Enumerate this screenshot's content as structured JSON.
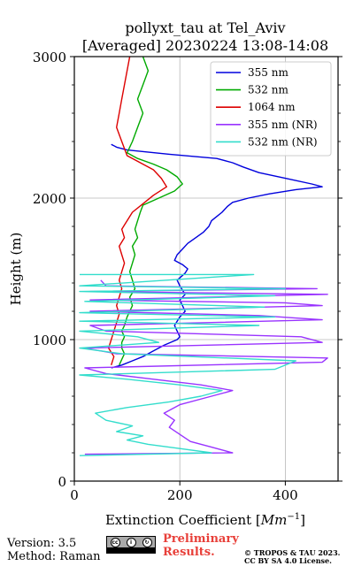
{
  "chart_data": {
    "type": "line",
    "title": "pollyxt_tau at Tel_Aviv",
    "subtitle": "[Averaged] 20230224 13:08-14:08",
    "xlabel": "Extinction Coefficient [Mm⁻¹]",
    "xlabel_main": "Extinction Coefficient [",
    "xlabel_unit": "Mm",
    "xlabel_exp": "−1",
    "xlabel_close": "]",
    "ylabel": "Height (m)",
    "xlim": [
      0,
      500
    ],
    "ylim": [
      0,
      3000
    ],
    "xticks": [
      0,
      200,
      400
    ],
    "xtick_labels": [
      "0",
      "200",
      "400"
    ],
    "yticks": [
      0,
      1000,
      2000,
      3000
    ],
    "ytick_labels": [
      "0",
      "1000",
      "2000",
      "3000"
    ],
    "grid": true,
    "legend_position": "top-right",
    "series": [
      {
        "name": "355 nm",
        "color": "#0000dd",
        "points": [
          [
            70,
            800
          ],
          [
            90,
            820
          ],
          [
            110,
            850
          ],
          [
            130,
            880
          ],
          [
            150,
            920
          ],
          [
            170,
            960
          ],
          [
            195,
            1000
          ],
          [
            200,
            1020
          ],
          [
            195,
            1060
          ],
          [
            190,
            1100
          ],
          [
            200,
            1160
          ],
          [
            210,
            1200
          ],
          [
            205,
            1240
          ],
          [
            200,
            1280
          ],
          [
            210,
            1320
          ],
          [
            205,
            1350
          ],
          [
            200,
            1380
          ],
          [
            195,
            1420
          ],
          [
            210,
            1470
          ],
          [
            215,
            1500
          ],
          [
            205,
            1530
          ],
          [
            190,
            1560
          ],
          [
            195,
            1600
          ],
          [
            205,
            1640
          ],
          [
            215,
            1680
          ],
          [
            230,
            1720
          ],
          [
            245,
            1760
          ],
          [
            255,
            1800
          ],
          [
            260,
            1840
          ],
          [
            270,
            1870
          ],
          [
            280,
            1900
          ],
          [
            290,
            1940
          ],
          [
            300,
            1970
          ],
          [
            330,
            2000
          ],
          [
            370,
            2030
          ],
          [
            420,
            2060
          ],
          [
            470,
            2080
          ],
          [
            450,
            2100
          ],
          [
            400,
            2140
          ],
          [
            350,
            2180
          ],
          [
            320,
            2220
          ],
          [
            300,
            2250
          ],
          [
            270,
            2280
          ],
          [
            180,
            2310
          ],
          [
            100,
            2340
          ],
          [
            80,
            2360
          ],
          [
            70,
            2380
          ]
        ]
      },
      {
        "name": "532 nm",
        "color": "#00aa00",
        "points": [
          [
            85,
            820
          ],
          [
            90,
            860
          ],
          [
            95,
            900
          ],
          [
            90,
            940
          ],
          [
            90,
            980
          ],
          [
            95,
            1020
          ],
          [
            90,
            1060
          ],
          [
            95,
            1100
          ],
          [
            100,
            1160
          ],
          [
            105,
            1200
          ],
          [
            110,
            1240
          ],
          [
            105,
            1300
          ],
          [
            115,
            1360
          ],
          [
            110,
            1420
          ],
          [
            105,
            1480
          ],
          [
            110,
            1540
          ],
          [
            115,
            1600
          ],
          [
            110,
            1660
          ],
          [
            120,
            1720
          ],
          [
            115,
            1780
          ],
          [
            120,
            1840
          ],
          [
            125,
            1900
          ],
          [
            130,
            1950
          ],
          [
            160,
            2000
          ],
          [
            190,
            2050
          ],
          [
            205,
            2100
          ],
          [
            195,
            2150
          ],
          [
            175,
            2200
          ],
          [
            150,
            2240
          ],
          [
            120,
            2280
          ],
          [
            100,
            2320
          ],
          [
            110,
            2400
          ],
          [
            120,
            2500
          ],
          [
            130,
            2600
          ],
          [
            120,
            2700
          ],
          [
            130,
            2800
          ],
          [
            140,
            2900
          ],
          [
            130,
            3000
          ]
        ]
      },
      {
        "name": "1064 nm",
        "color": "#dd0000",
        "points": [
          [
            70,
            820
          ],
          [
            75,
            880
          ],
          [
            65,
            940
          ],
          [
            70,
            1000
          ],
          [
            75,
            1060
          ],
          [
            80,
            1120
          ],
          [
            85,
            1180
          ],
          [
            80,
            1240
          ],
          [
            85,
            1300
          ],
          [
            90,
            1360
          ],
          [
            85,
            1420
          ],
          [
            90,
            1480
          ],
          [
            95,
            1540
          ],
          [
            90,
            1600
          ],
          [
            85,
            1660
          ],
          [
            95,
            1720
          ],
          [
            90,
            1780
          ],
          [
            100,
            1840
          ],
          [
            110,
            1900
          ],
          [
            130,
            1960
          ],
          [
            150,
            2020
          ],
          [
            175,
            2080
          ],
          [
            165,
            2140
          ],
          [
            150,
            2200
          ],
          [
            120,
            2260
          ],
          [
            100,
            2300
          ],
          [
            90,
            2400
          ],
          [
            80,
            2500
          ],
          [
            85,
            2600
          ],
          [
            90,
            2700
          ],
          [
            95,
            2800
          ],
          [
            100,
            2900
          ],
          [
            105,
            3000
          ]
        ]
      },
      {
        "name": "355 nm (NR)",
        "color": "#9933ff",
        "points": [
          [
            20,
            190
          ],
          [
            300,
            200
          ],
          [
            260,
            240
          ],
          [
            220,
            280
          ],
          [
            200,
            330
          ],
          [
            180,
            380
          ],
          [
            190,
            430
          ],
          [
            170,
            480
          ],
          [
            200,
            540
          ],
          [
            260,
            600
          ],
          [
            300,
            640
          ],
          [
            240,
            680
          ],
          [
            150,
            720
          ],
          [
            60,
            760
          ],
          [
            20,
            800
          ],
          [
            470,
            840
          ],
          [
            480,
            870
          ],
          [
            80,
            900
          ],
          [
            20,
            940
          ],
          [
            470,
            980
          ],
          [
            430,
            1020
          ],
          [
            60,
            1060
          ],
          [
            30,
            1100
          ],
          [
            470,
            1140
          ],
          [
            350,
            1170
          ],
          [
            30,
            1200
          ],
          [
            470,
            1240
          ],
          [
            400,
            1260
          ],
          [
            30,
            1280
          ],
          [
            480,
            1320
          ],
          [
            30,
            1340
          ],
          [
            460,
            1360
          ],
          [
            60,
            1380
          ],
          [
            50,
            1420
          ]
        ]
      },
      {
        "name": "532 nm (NR)",
        "color": "#33ddcc",
        "points": [
          [
            10,
            180
          ],
          [
            260,
            200
          ],
          [
            200,
            230
          ],
          [
            140,
            260
          ],
          [
            100,
            290
          ],
          [
            130,
            320
          ],
          [
            80,
            350
          ],
          [
            110,
            390
          ],
          [
            60,
            430
          ],
          [
            40,
            480
          ],
          [
            100,
            520
          ],
          [
            180,
            560
          ],
          [
            240,
            600
          ],
          [
            280,
            640
          ],
          [
            200,
            680
          ],
          [
            100,
            720
          ],
          [
            10,
            750
          ],
          [
            380,
            790
          ],
          [
            420,
            850
          ],
          [
            90,
            900
          ],
          [
            10,
            940
          ],
          [
            160,
            980
          ],
          [
            120,
            1020
          ],
          [
            10,
            1060
          ],
          [
            350,
            1100
          ],
          [
            10,
            1130
          ],
          [
            380,
            1160
          ],
          [
            10,
            1190
          ],
          [
            360,
            1230
          ],
          [
            20,
            1270
          ],
          [
            380,
            1310
          ],
          [
            10,
            1340
          ],
          [
            400,
            1360
          ],
          [
            10,
            1380
          ],
          [
            340,
            1460
          ],
          [
            10,
            1460
          ]
        ]
      }
    ]
  },
  "footer": {
    "version": "Version: 3.5",
    "method": "Method: Raman",
    "preliminary_line1": "Preliminary",
    "preliminary_line2": "Results.",
    "copyright_line1": "© TROPOS & TAU 2023.",
    "copyright_line2": "CC BY SA 4.0 License.",
    "license_badge": "CC BY SA"
  }
}
